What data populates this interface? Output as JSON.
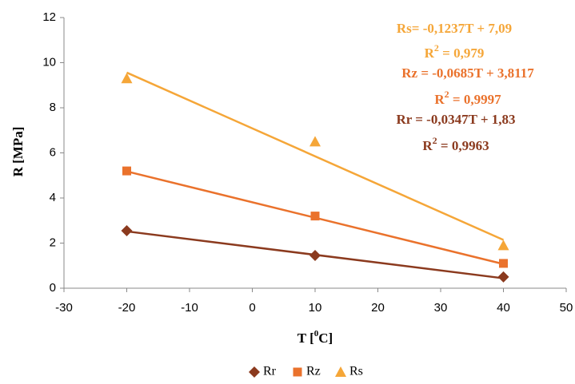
{
  "chart_data": {
    "type": "scatter",
    "x": [
      -20,
      10,
      40
    ],
    "trend_x": [
      -20,
      40
    ],
    "xlim": [
      -30,
      50
    ],
    "xticks": [
      -30,
      -20,
      -10,
      0,
      10,
      20,
      30,
      40,
      50
    ],
    "ylim": [
      0,
      12
    ],
    "yticks": [
      0,
      2,
      4,
      6,
      8,
      10,
      12
    ],
    "grid": false,
    "legend": "bottom",
    "x_label": [
      "T [",
      "0",
      "C]"
    ],
    "y_label": "R [MPa]",
    "series": [
      {
        "name": "Rr",
        "color": "#8b3a1e",
        "marker": "diamond",
        "values": [
          2.55,
          1.45,
          0.5
        ],
        "trend_values": [
          2.52,
          0.44
        ]
      },
      {
        "name": "Rz",
        "color": "#ea722c",
        "marker": "square",
        "values": [
          5.2,
          3.2,
          1.1
        ],
        "trend_values": [
          5.18,
          1.07
        ]
      },
      {
        "name": "Rs",
        "color": "#f5a638",
        "marker": "triangle",
        "values": [
          9.3,
          6.5,
          1.9
        ],
        "trend_values": [
          9.56,
          2.14
        ]
      }
    ],
    "annotations": [
      {
        "parts": [
          "Rs= -0,1237T + 7,09"
        ],
        "color": "#f5a638"
      },
      {
        "parts": [
          "R",
          "2",
          " = 0,979"
        ],
        "color": "#f5a638"
      },
      {
        "parts": [
          "Rz = -0,0685T + 3,8117"
        ],
        "color": "#ea722c"
      },
      {
        "parts": [
          "R",
          "2",
          " = 0,9997"
        ],
        "color": "#ea722c"
      },
      {
        "parts": [
          "Rr = -0,0347T + 1,83"
        ],
        "color": "#8b3a1e"
      },
      {
        "parts": [
          "R",
          "2",
          " = 0,9963"
        ],
        "color": "#8b3a1e"
      }
    ]
  }
}
